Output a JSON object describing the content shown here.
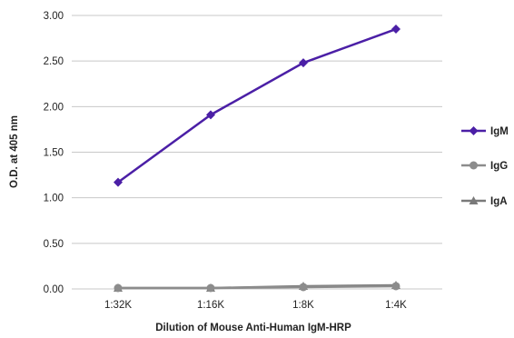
{
  "chart_data": {
    "type": "line",
    "title": "",
    "xlabel": "Dilution of Mouse Anti-Human IgM-HRP",
    "ylabel": "O.D. at 405 nm",
    "categories": [
      "1:32K",
      "1:16K",
      "1:8K",
      "1:4K"
    ],
    "ylim": [
      0,
      3
    ],
    "yticks": [
      "0.00",
      "0.50",
      "1.00",
      "1.50",
      "2.00",
      "2.50",
      "3.00"
    ],
    "grid": true,
    "legend_position": "right",
    "series": [
      {
        "name": "IgM",
        "values": [
          1.17,
          1.91,
          2.48,
          2.85
        ],
        "color": "#4b1fa6",
        "marker": "diamond"
      },
      {
        "name": "IgG",
        "values": [
          0.01,
          0.01,
          0.02,
          0.03
        ],
        "color": "#8c8c8c",
        "marker": "circle"
      },
      {
        "name": "IgA",
        "values": [
          0.01,
          0.01,
          0.03,
          0.04
        ],
        "color": "#7a7a7a",
        "marker": "triangle"
      }
    ]
  }
}
